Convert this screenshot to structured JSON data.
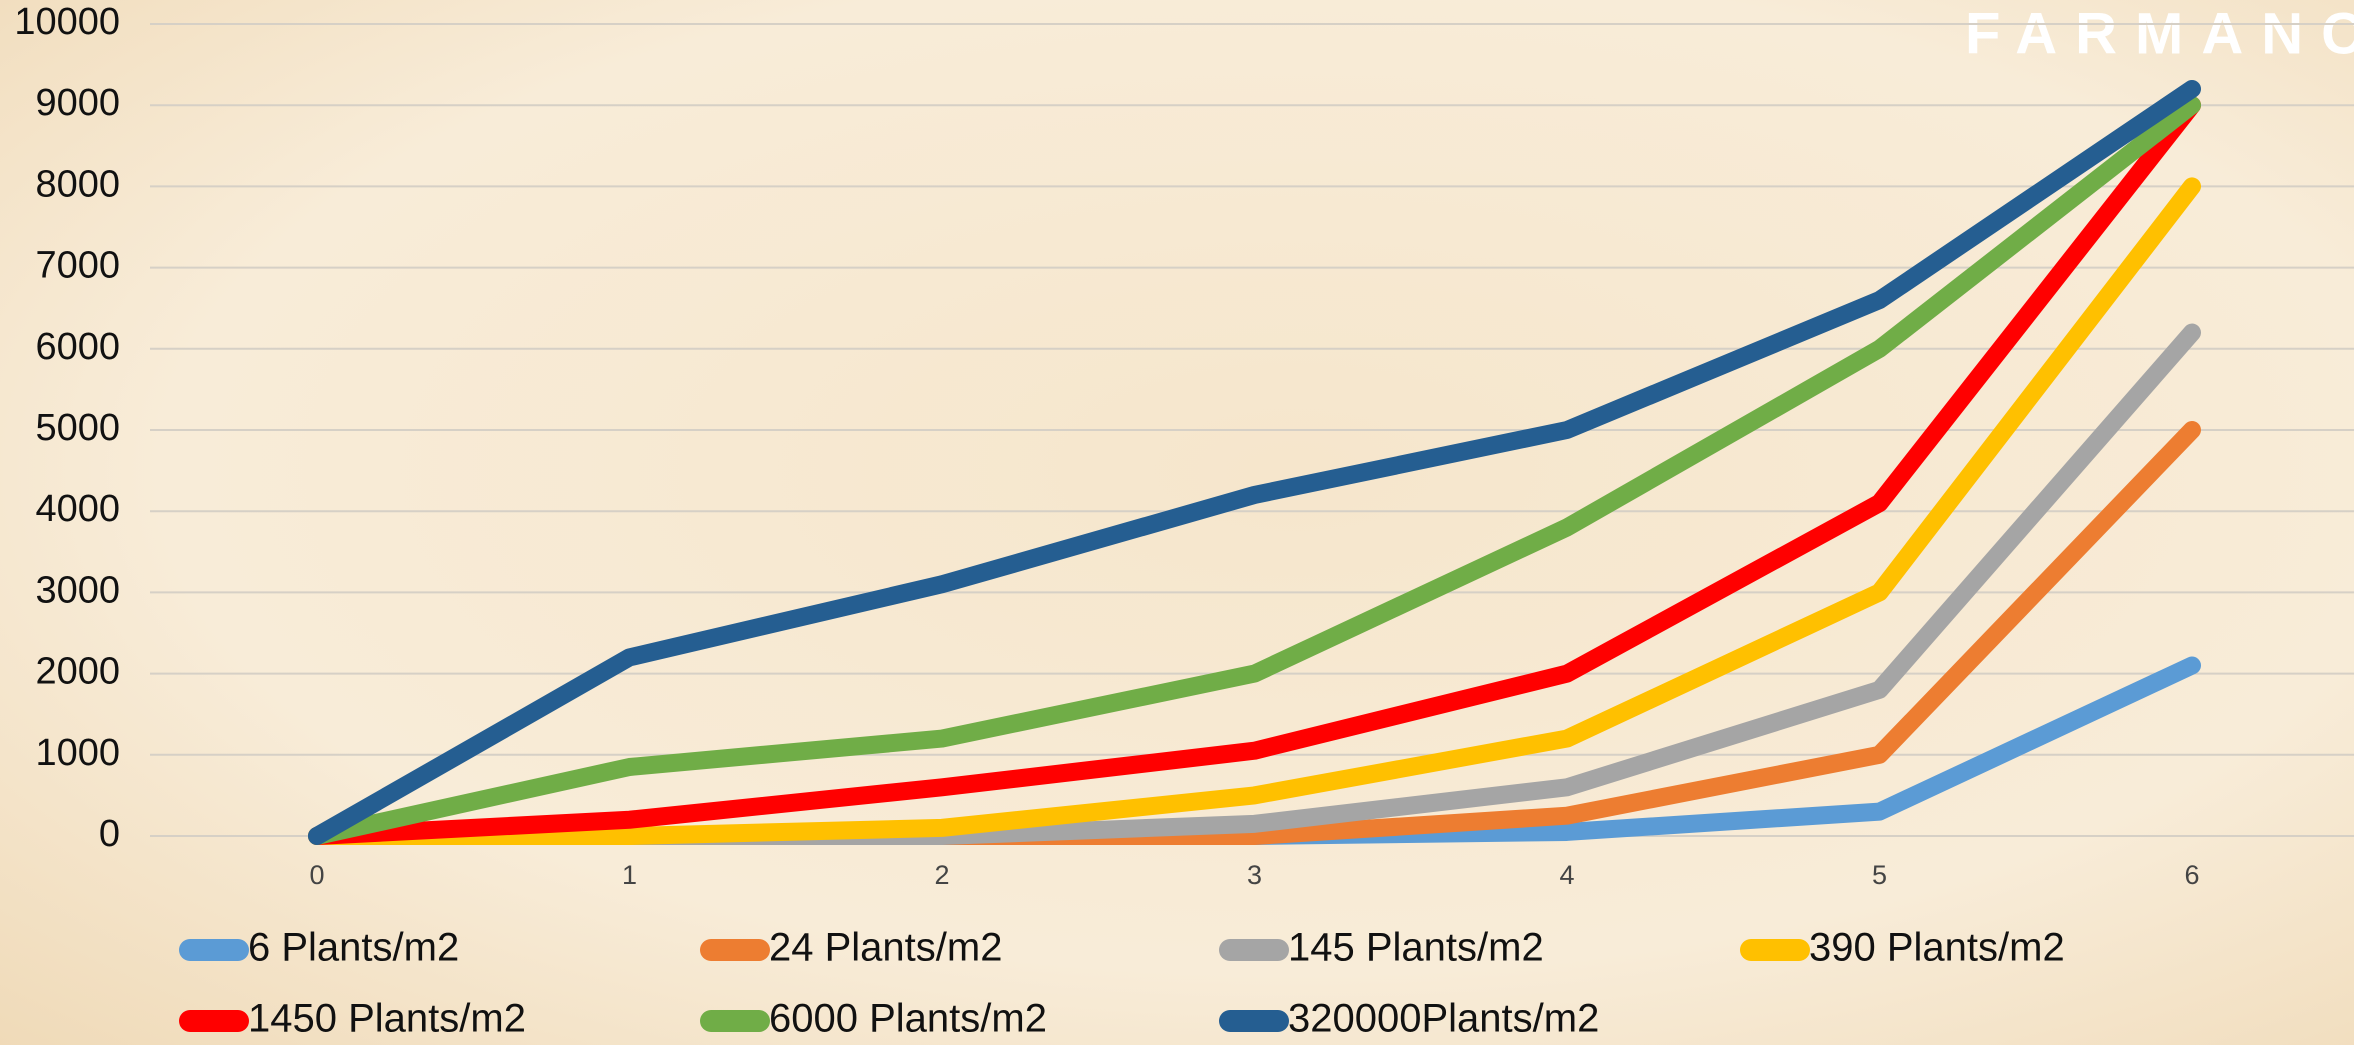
{
  "chart_data": {
    "type": "line",
    "brand": "FARMANCO",
    "x": [
      0,
      1,
      2,
      3,
      4,
      5,
      6
    ],
    "xlim": [
      0,
      6
    ],
    "xticks": [
      0,
      1,
      2,
      3,
      4,
      5,
      6
    ],
    "ylim": [
      0,
      10000
    ],
    "yticks": [
      0,
      1000,
      2000,
      3000,
      4000,
      5000,
      6000,
      7000,
      8000,
      9000,
      10000
    ],
    "grid": true,
    "series": [
      {
        "name": "6 Plants/m2",
        "color": "#5b9bd5",
        "values": [
          0,
          0,
          0,
          0,
          50,
          300,
          2100
        ]
      },
      {
        "name": "24 Plants/m2",
        "color": "#ed7d31",
        "values": [
          0,
          0,
          0,
          0,
          250,
          1000,
          5000
        ]
      },
      {
        "name": "145 Plants/m2",
        "color": "#a5a5a5",
        "values": [
          0,
          0,
          0,
          150,
          600,
          1800,
          6200
        ]
      },
      {
        "name": "390 Plants/m2",
        "color": "#ffc000",
        "values": [
          0,
          0,
          100,
          500,
          1200,
          3000,
          8000
        ]
      },
      {
        "name": "1450 Plants/m2",
        "color": "#ff0000",
        "values": [
          0,
          200,
          600,
          1050,
          2000,
          4100,
          9000
        ]
      },
      {
        "name": "6000 Plants/m2",
        "color": "#70ad47",
        "values": [
          0,
          850,
          1200,
          2000,
          3800,
          6000,
          9000
        ]
      },
      {
        "name": "320000Plants/m2",
        "color": "#255e91",
        "values": [
          0,
          2200,
          3100,
          4200,
          5000,
          6600,
          9200
        ]
      }
    ]
  }
}
